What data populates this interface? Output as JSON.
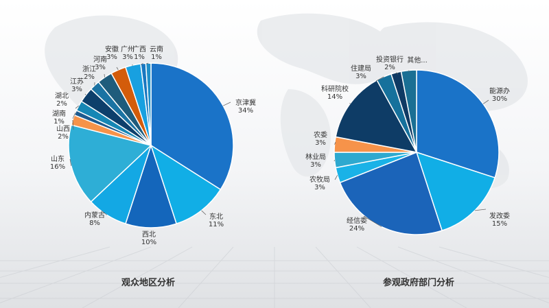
{
  "captions": {
    "left": "观众地区分析",
    "right": "参观政府部门分析"
  },
  "chart_data": [
    {
      "type": "pie",
      "title": "观众地区分析",
      "categories": [
        "京津冀",
        "东北",
        "西北",
        "内蒙古",
        "山东",
        "山西",
        "湖南",
        "湖北",
        "江苏",
        "浙江",
        "河南",
        "安徽",
        "广州",
        "广西",
        "云南"
      ],
      "values": [
        34,
        11,
        10,
        8,
        16,
        2,
        1,
        2,
        3,
        2,
        3,
        3,
        3,
        1,
        1
      ],
      "labels": [
        "34%",
        "11%",
        "10%",
        "8%",
        "16%",
        "2%",
        "1%",
        "2%",
        "3%",
        "2%",
        "3%",
        "3%",
        "3%",
        "1%",
        "1%"
      ],
      "colors": [
        "#1a73c8",
        "#11aee6",
        "#1466bb",
        "#13a8e4",
        "#2eaed6",
        "#f6934a",
        "#1d5a8e",
        "#1687b5",
        "#0d3f6b",
        "#1b73a3",
        "#1f5c7c",
        "#d35c0b",
        "#18a0e0",
        "#1877c0",
        "#1f8fc8"
      ]
    },
    {
      "type": "pie",
      "title": "参观政府部门分析",
      "categories": [
        "能源办",
        "发改委",
        "经信委",
        "农牧局",
        "林业局",
        "农委",
        "科研院校",
        "住建局",
        "投资银行",
        "其他..."
      ],
      "values": [
        30,
        15,
        24,
        3,
        3,
        3,
        14,
        3,
        2,
        3
      ],
      "labels": [
        "30%",
        "15%",
        "24%",
        "3%",
        "3%",
        "3%",
        "14%",
        "3%",
        "2%",
        ""
      ],
      "colors": [
        "#1a73c8",
        "#11aee6",
        "#1b64b9",
        "#1ab2e7",
        "#2ea9cf",
        "#f6934a",
        "#0e3c66",
        "#16719c",
        "#0f3a64",
        "#1a6f94"
      ]
    }
  ]
}
